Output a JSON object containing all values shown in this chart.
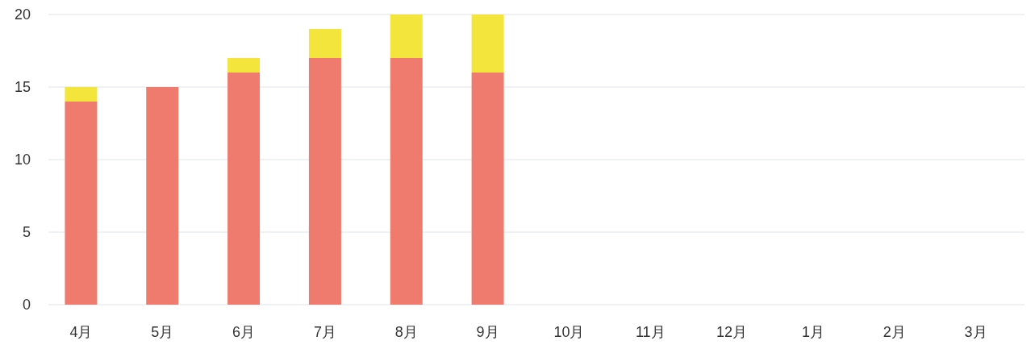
{
  "chart_data": {
    "type": "bar",
    "stacked": true,
    "categories": [
      "4月",
      "5月",
      "6月",
      "7月",
      "8月",
      "9月",
      "10月",
      "11月",
      "12月",
      "1月",
      "2月",
      "3月"
    ],
    "series": [
      {
        "color": "#ee7b6e",
        "values": [
          14,
          15,
          16,
          17,
          17,
          16,
          null,
          null,
          null,
          null,
          null,
          null
        ]
      },
      {
        "color": "#f4e53c",
        "values": [
          1,
          0,
          1,
          2,
          3,
          4,
          null,
          null,
          null,
          null,
          null,
          null
        ]
      }
    ],
    "ylim": [
      0,
      20
    ],
    "yticks": [
      0,
      5,
      10,
      15,
      20
    ],
    "grid": "y"
  }
}
